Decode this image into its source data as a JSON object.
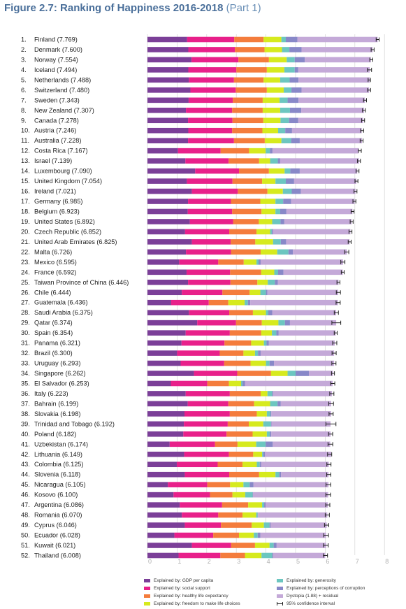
{
  "figure": {
    "title_bold": "Figure 2.7: Ranking of Happiness 2016-2018",
    "title_part": "(Part 1)"
  },
  "colors": {
    "gdp": "#7b3f98",
    "social": "#e8208a",
    "health": "#f47c3c",
    "freedom": "#d6ea1e",
    "generosity": "#6cc6c0",
    "corruption": "#8888c8",
    "dystopia": "#c4a9d8",
    "title": "#4a6f9a"
  },
  "legend": {
    "items": [
      {
        "key": "gdp",
        "label": "Explained by: GDP per capita"
      },
      {
        "key": "social",
        "label": "Explained by: social support"
      },
      {
        "key": "health",
        "label": "Explained by: healthy life expectancy"
      },
      {
        "key": "freedom",
        "label": "Explained by: freedom to make life choices"
      },
      {
        "key": "generosity",
        "label": "Explained by: generosity"
      },
      {
        "key": "corruption",
        "label": "Explained by: perceptions of corruption"
      },
      {
        "key": "dystopia",
        "label": "Dystopia (1.88) + residual"
      },
      {
        "key": "ci",
        "label": "95% confidence interval"
      }
    ]
  },
  "chart_data": {
    "type": "bar",
    "orientation": "horizontal",
    "stacked": true,
    "title": "Figure 2.7: Ranking of Happiness 2016-2018 (Part 1)",
    "xlim": [
      0,
      8
    ],
    "xticks": [
      "0",
      "1",
      "2",
      "3",
      "4",
      "5",
      "6",
      "7",
      "8"
    ],
    "grid": true,
    "legend_position": "bottom",
    "series_keys": [
      "gdp",
      "social",
      "health",
      "freedom",
      "generosity",
      "corruption",
      "dystopia"
    ],
    "rows": [
      {
        "rank": "1.",
        "label": "Finland (7.769)",
        "score": 7.769,
        "parts": [
          1.34,
          1.59,
          0.99,
          0.6,
          0.15,
          0.39,
          2.71
        ],
        "ci": 0.05
      },
      {
        "rank": "2.",
        "label": "Denmark (7.600)",
        "score": 7.6,
        "parts": [
          1.38,
          1.57,
          1.0,
          0.59,
          0.25,
          0.41,
          2.4
        ],
        "ci": 0.05
      },
      {
        "rank": "3.",
        "label": "Norway (7.554)",
        "score": 7.554,
        "parts": [
          1.49,
          1.58,
          1.03,
          0.6,
          0.27,
          0.34,
          2.23
        ],
        "ci": 0.05
      },
      {
        "rank": "4.",
        "label": "Iceland (7.494)",
        "score": 7.494,
        "parts": [
          1.38,
          1.62,
          1.03,
          0.59,
          0.35,
          0.12,
          2.41
        ],
        "ci": 0.07
      },
      {
        "rank": "5.",
        "label": "Netherlands (7.488)",
        "score": 7.488,
        "parts": [
          1.4,
          1.52,
          1.0,
          0.56,
          0.32,
          0.3,
          2.4
        ],
        "ci": 0.04
      },
      {
        "rank": "6.",
        "label": "Switzerland (7.480)",
        "score": 7.48,
        "parts": [
          1.45,
          1.53,
          1.05,
          0.57,
          0.26,
          0.34,
          2.28
        ],
        "ci": 0.05
      },
      {
        "rank": "7.",
        "label": "Sweden (7.343)",
        "score": 7.343,
        "parts": [
          1.39,
          1.49,
          1.01,
          0.57,
          0.27,
          0.37,
          2.24
        ],
        "ci": 0.05
      },
      {
        "rank": "8.",
        "label": "New Zealand (7.307)",
        "score": 7.307,
        "parts": [
          1.3,
          1.56,
          1.03,
          0.59,
          0.33,
          0.38,
          2.12
        ],
        "ci": 0.05
      },
      {
        "rank": "9.",
        "label": "Canada (7.278)",
        "score": 7.278,
        "parts": [
          1.37,
          1.5,
          1.04,
          0.58,
          0.29,
          0.31,
          2.19
        ],
        "ci": 0.05
      },
      {
        "rank": "10.",
        "label": "Austria (7.246)",
        "score": 7.246,
        "parts": [
          1.38,
          1.48,
          1.02,
          0.53,
          0.24,
          0.23,
          2.35
        ],
        "ci": 0.05
      },
      {
        "rank": "11.",
        "label": "Australia (7.228)",
        "score": 7.228,
        "parts": [
          1.37,
          1.55,
          1.04,
          0.56,
          0.33,
          0.29,
          2.1
        ],
        "ci": 0.05
      },
      {
        "rank": "12.",
        "label": "Costa Rica (7.167)",
        "score": 7.167,
        "parts": [
          1.03,
          1.44,
          0.96,
          0.56,
          0.14,
          0.09,
          2.91
        ],
        "ci": 0.05
      },
      {
        "rank": "13.",
        "label": "Israel (7.139)",
        "score": 7.139,
        "parts": [
          1.28,
          1.46,
          1.03,
          0.37,
          0.26,
          0.08,
          2.66
        ],
        "ci": 0.05
      },
      {
        "rank": "14.",
        "label": "Luxembourg (7.090)",
        "score": 7.09,
        "parts": [
          1.61,
          1.48,
          1.01,
          0.53,
          0.19,
          0.32,
          1.94
        ],
        "ci": 0.05
      },
      {
        "rank": "15.",
        "label": "United Kingdom (7.054)",
        "score": 7.054,
        "parts": [
          1.33,
          1.54,
          1.0,
          0.45,
          0.35,
          0.28,
          2.1
        ],
        "ci": 0.05
      },
      {
        "rank": "16.",
        "label": "Ireland (7.021)",
        "score": 7.021,
        "parts": [
          1.5,
          1.55,
          1.0,
          0.52,
          0.3,
          0.31,
          1.84
        ],
        "ci": 0.05
      },
      {
        "rank": "17.",
        "label": "Germany (6.985)",
        "score": 6.985,
        "parts": [
          1.37,
          1.45,
          0.99,
          0.51,
          0.26,
          0.27,
          2.14
        ],
        "ci": 0.05
      },
      {
        "rank": "18.",
        "label": "Belgium (6.923)",
        "score": 6.923,
        "parts": [
          1.36,
          1.5,
          0.99,
          0.47,
          0.16,
          0.21,
          2.23
        ],
        "ci": 0.05
      },
      {
        "rank": "19.",
        "label": "United States (6.892)",
        "score": 6.892,
        "parts": [
          1.43,
          1.46,
          0.87,
          0.45,
          0.28,
          0.13,
          2.27
        ],
        "ci": 0.05
      },
      {
        "rank": "20.",
        "label": "Czech Republic (6.852)",
        "score": 6.852,
        "parts": [
          1.27,
          1.49,
          0.92,
          0.46,
          0.06,
          0.04,
          2.61
        ],
        "ci": 0.05
      },
      {
        "rank": "21.",
        "label": "United Arab Emirates (6.825)",
        "score": 6.825,
        "parts": [
          1.5,
          1.31,
          0.83,
          0.6,
          0.26,
          0.18,
          2.14
        ],
        "ci": 0.05
      },
      {
        "rank": "22.",
        "label": "Malta (6.726)",
        "score": 6.726,
        "parts": [
          1.3,
          1.52,
          1.0,
          0.56,
          0.38,
          0.15,
          1.82
        ],
        "ci": 0.07
      },
      {
        "rank": "23.",
        "label": "Mexico (6.595)",
        "score": 6.595,
        "parts": [
          1.07,
          1.32,
          0.86,
          0.43,
          0.07,
          0.07,
          2.78
        ],
        "ci": 0.07
      },
      {
        "rank": "24.",
        "label": "France (6.592)",
        "score": 6.592,
        "parts": [
          1.32,
          1.47,
          1.05,
          0.44,
          0.13,
          0.18,
          2.0
        ],
        "ci": 0.05
      },
      {
        "rank": "25.",
        "label": "Taiwan Province of China (6.446)",
        "score": 6.446,
        "parts": [
          1.37,
          1.43,
          0.91,
          0.35,
          0.24,
          0.1,
          2.05
        ],
        "ci": 0.05
      },
      {
        "rank": "26.",
        "label": "Chile (6.444)",
        "score": 6.444,
        "parts": [
          1.16,
          1.37,
          0.92,
          0.36,
          0.19,
          0.05,
          2.39
        ],
        "ci": 0.07
      },
      {
        "rank": "27.",
        "label": "Guatemala (6.436)",
        "score": 6.436,
        "parts": [
          0.8,
          1.27,
          0.66,
          0.55,
          0.11,
          0.08,
          2.96
        ],
        "ci": 0.07
      },
      {
        "rank": "28.",
        "label": "Saudi Arabia (6.375)",
        "score": 6.375,
        "parts": [
          1.4,
          1.36,
          0.8,
          0.44,
          0.08,
          0.13,
          2.16
        ],
        "ci": 0.07
      },
      {
        "rank": "29.",
        "label": "Qatar (6.374)",
        "score": 6.374,
        "parts": [
          1.68,
          1.31,
          0.87,
          0.56,
          0.22,
          0.17,
          1.56
        ],
        "ci": 0.15
      },
      {
        "rank": "30.",
        "label": "Spain (6.354)",
        "score": 6.354,
        "parts": [
          1.29,
          1.49,
          1.06,
          0.36,
          0.15,
          0.08,
          1.92
        ],
        "ci": 0.05
      },
      {
        "rank": "31.",
        "label": "Panama (6.321)",
        "score": 6.321,
        "parts": [
          1.15,
          1.45,
          0.9,
          0.43,
          0.09,
          0.08,
          2.22
        ],
        "ci": 0.07
      },
      {
        "rank": "32.",
        "label": "Brazil (6.300)",
        "score": 6.3,
        "parts": [
          1.0,
          1.44,
          0.8,
          0.39,
          0.1,
          0.09,
          2.48
        ],
        "ci": 0.07
      },
      {
        "rank": "33.",
        "label": "Uruguay (6.293)",
        "score": 6.293,
        "parts": [
          1.12,
          1.47,
          0.89,
          0.52,
          0.12,
          0.15,
          2.03
        ],
        "ci": 0.07
      },
      {
        "rank": "34.",
        "label": "Singapore (6.262)",
        "score": 6.262,
        "parts": [
          1.57,
          1.46,
          1.14,
          0.56,
          0.27,
          0.45,
          0.81
        ],
        "ci": 0.05
      },
      {
        "rank": "35.",
        "label": "El Salvador (6.253)",
        "score": 6.253,
        "parts": [
          0.79,
          1.23,
          0.73,
          0.41,
          0.05,
          0.08,
          2.96
        ],
        "ci": 0.07
      },
      {
        "rank": "36.",
        "label": "Italy (6.223)",
        "score": 6.223,
        "parts": [
          1.29,
          1.49,
          1.04,
          0.23,
          0.16,
          0.03,
          1.99
        ],
        "ci": 0.07
      },
      {
        "rank": "37.",
        "label": "Bahrain (6.199)",
        "score": 6.199,
        "parts": [
          1.36,
          1.37,
          0.87,
          0.54,
          0.25,
          0.11,
          1.7
        ],
        "ci": 0.08
      },
      {
        "rank": "38.",
        "label": "Slovakia (6.198)",
        "score": 6.198,
        "parts": [
          1.25,
          1.53,
          0.91,
          0.34,
          0.12,
          0.03,
          2.02
        ],
        "ci": 0.07
      },
      {
        "rank": "39.",
        "label": "Trinidad and Tobago (6.192)",
        "score": 6.192,
        "parts": [
          1.23,
          1.48,
          0.71,
          0.49,
          0.26,
          0.02,
          1.99
        ],
        "ci": 0.17
      },
      {
        "rank": "40.",
        "label": "Poland (6.182)",
        "score": 6.182,
        "parts": [
          1.21,
          1.46,
          0.88,
          0.48,
          0.1,
          0.05,
          2.0
        ],
        "ci": 0.07
      },
      {
        "rank": "41.",
        "label": "Uzbekistan (6.174)",
        "score": 6.174,
        "parts": [
          0.75,
          1.53,
          0.76,
          0.63,
          0.32,
          0.24,
          1.94
        ],
        "ci": 0.08
      },
      {
        "rank": "42.",
        "label": "Lithuania (6.149)",
        "score": 6.149,
        "parts": [
          1.24,
          1.51,
          0.82,
          0.3,
          0.04,
          0.06,
          2.23
        ],
        "ci": 0.07
      },
      {
        "rank": "43.",
        "label": "Colombia (6.125)",
        "score": 6.125,
        "parts": [
          0.99,
          1.38,
          0.84,
          0.48,
          0.1,
          0.05,
          2.28
        ],
        "ci": 0.07
      },
      {
        "rank": "44.",
        "label": "Slovenia (6.118)",
        "score": 6.118,
        "parts": [
          1.26,
          1.5,
          1.01,
          0.55,
          0.13,
          0.06,
          1.6
        ],
        "ci": 0.07
      },
      {
        "rank": "45.",
        "label": "Nicaragua (6.105)",
        "score": 6.105,
        "parts": [
          0.69,
          1.33,
          0.77,
          0.45,
          0.21,
          0.13,
          2.53
        ],
        "ci": 0.08
      },
      {
        "rank": "46.",
        "label": "Kosovo (6.100)",
        "score": 6.1,
        "parts": [
          0.88,
          1.23,
          0.76,
          0.43,
          0.25,
          0.01,
          2.54
        ],
        "ci": 0.08
      },
      {
        "rank": "47.",
        "label": "Argentina (6.086)",
        "score": 6.086,
        "parts": [
          1.09,
          1.43,
          0.88,
          0.47,
          0.07,
          0.05,
          2.1
        ],
        "ci": 0.07
      },
      {
        "rank": "48.",
        "label": "Romania (6.070)",
        "score": 6.07,
        "parts": [
          1.16,
          1.23,
          0.82,
          0.46,
          0.05,
          0.01,
          2.34
        ],
        "ci": 0.07
      },
      {
        "rank": "49.",
        "label": "Cyprus (6.046)",
        "score": 6.046,
        "parts": [
          1.26,
          1.22,
          1.04,
          0.41,
          0.19,
          0.04,
          1.89
        ],
        "ci": 0.07
      },
      {
        "rank": "50.",
        "label": "Ecuador (6.028)",
        "score": 6.028,
        "parts": [
          0.91,
          1.31,
          0.87,
          0.5,
          0.13,
          0.09,
          2.22
        ],
        "ci": 0.08
      },
      {
        "rank": "51.",
        "label": "Kuwait (6.021)",
        "score": 6.021,
        "parts": [
          1.5,
          1.32,
          0.81,
          0.49,
          0.14,
          0.1,
          1.67
        ],
        "ci": 0.08
      },
      {
        "rank": "52.",
        "label": "Thailand (6.008)",
        "score": 6.008,
        "parts": [
          1.05,
          1.41,
          0.83,
          0.56,
          0.36,
          0.03,
          1.76
        ],
        "ci": 0.07
      }
    ]
  }
}
